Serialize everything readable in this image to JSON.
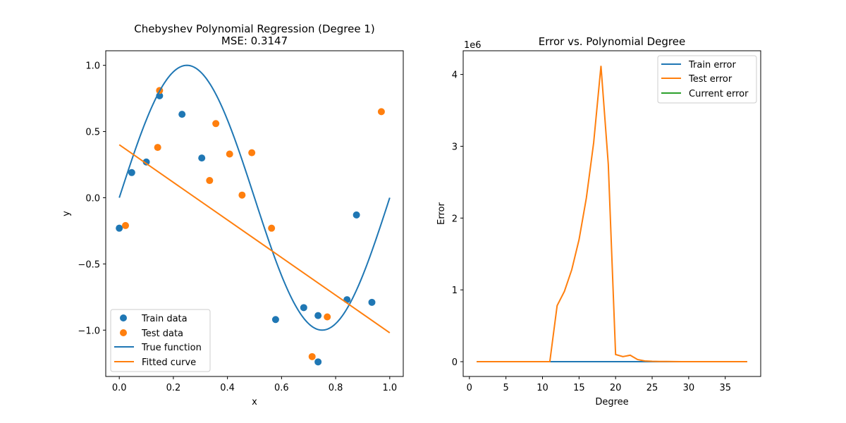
{
  "chart_data": [
    {
      "type": "scatter",
      "title": "Chebyshev Polynomial Regression (Degree 1)",
      "subtitle": "MSE: 0.3147",
      "xlabel": "x",
      "ylabel": "y",
      "xlim": [
        -0.05,
        1.05
      ],
      "ylim": [
        -1.35,
        1.11
      ],
      "xticks": [
        0.0,
        0.2,
        0.4,
        0.6,
        0.8,
        1.0
      ],
      "xtick_labels": [
        "0.0",
        "0.2",
        "0.4",
        "0.6",
        "0.8",
        "1.0"
      ],
      "yticks": [
        -1.0,
        -0.5,
        0.0,
        0.5,
        1.0
      ],
      "ytick_labels": [
        "−1.0",
        "−0.5",
        "0.0",
        "0.5",
        "1.0"
      ],
      "legend_position": "lower-left",
      "series": [
        {
          "name": "Train data",
          "kind": "scatter",
          "color": "#1f77b4",
          "points": [
            [
              0.0,
              -0.23
            ],
            [
              0.046,
              0.19
            ],
            [
              0.1,
              0.27
            ],
            [
              0.149,
              0.77
            ],
            [
              0.232,
              0.63
            ],
            [
              0.305,
              0.3
            ],
            [
              0.578,
              -0.92
            ],
            [
              0.682,
              -0.83
            ],
            [
              0.735,
              -0.89
            ],
            [
              0.735,
              -1.24
            ],
            [
              0.842,
              -0.77
            ],
            [
              0.877,
              -0.13
            ],
            [
              0.934,
              -0.79
            ]
          ]
        },
        {
          "name": "Test data",
          "kind": "scatter",
          "color": "#ff7f0e",
          "points": [
            [
              0.023,
              -0.21
            ],
            [
              0.142,
              0.38
            ],
            [
              0.149,
              0.81
            ],
            [
              0.334,
              0.13
            ],
            [
              0.357,
              0.56
            ],
            [
              0.408,
              0.33
            ],
            [
              0.454,
              0.02
            ],
            [
              0.49,
              0.34
            ],
            [
              0.563,
              -0.23
            ],
            [
              0.713,
              -1.2
            ],
            [
              0.769,
              -0.9
            ],
            [
              0.969,
              0.65
            ]
          ]
        },
        {
          "name": "True function",
          "kind": "function",
          "color": "#1f77b4",
          "function": "sin(2*pi*x)",
          "x_range": [
            0.0,
            1.0
          ]
        },
        {
          "name": "Fitted curve",
          "kind": "line",
          "color": "#ff7f0e",
          "points": [
            [
              0.0,
              0.4
            ],
            [
              1.0,
              -1.02
            ]
          ]
        }
      ]
    },
    {
      "type": "line",
      "title": "Error vs. Polynomial Degree",
      "xlabel": "Degree",
      "ylabel": "Error",
      "y_multiplier_label": "1e6",
      "xlim": [
        -0.85,
        39.85
      ],
      "ylim": [
        -0.206,
        4.33
      ],
      "xticks": [
        0,
        5,
        10,
        15,
        20,
        25,
        30,
        35
      ],
      "xtick_labels": [
        "0",
        "5",
        "10",
        "15",
        "20",
        "25",
        "30",
        "35"
      ],
      "yticks": [
        0,
        1,
        2,
        3,
        4
      ],
      "ytick_labels": [
        "0",
        "1",
        "2",
        "3",
        "4"
      ],
      "legend_position": "upper-right",
      "series": [
        {
          "name": "Train error",
          "color": "#1f77b4",
          "x": [
            1,
            2,
            3,
            4,
            5,
            6,
            7,
            8,
            9,
            10,
            11,
            12,
            13,
            14,
            15,
            16,
            17,
            18,
            19,
            20,
            21,
            22,
            23,
            24,
            25,
            26,
            27,
            28,
            29,
            30,
            31,
            32,
            33,
            34,
            35,
            36,
            37,
            38
          ],
          "y": [
            0,
            0,
            0,
            0,
            0,
            0,
            0,
            0,
            0,
            0,
            0,
            0,
            0,
            0,
            0,
            0,
            0,
            0,
            0,
            0,
            0,
            0,
            0,
            0,
            0,
            0,
            0,
            0,
            0,
            0,
            0,
            0,
            0,
            0,
            0,
            0,
            0,
            0
          ]
        },
        {
          "name": "Test error",
          "color": "#ff7f0e",
          "x": [
            1,
            2,
            3,
            4,
            5,
            6,
            7,
            8,
            9,
            10,
            11,
            12,
            13,
            14,
            15,
            16,
            17,
            18,
            19,
            20,
            21,
            22,
            23,
            24,
            25,
            26,
            27,
            28,
            29,
            30,
            31,
            32,
            33,
            34,
            35,
            36,
            37,
            38
          ],
          "y": [
            0,
            0,
            0,
            0,
            0,
            0,
            0,
            0,
            0,
            0,
            0,
            0.78,
            0.98,
            1.28,
            1.7,
            2.28,
            3.05,
            4.12,
            2.75,
            0.1,
            0.07,
            0.09,
            0.03,
            0.01,
            0.005,
            0.003,
            0.002,
            0.001,
            0,
            0,
            0,
            0,
            0,
            0,
            0,
            0,
            0,
            0
          ]
        },
        {
          "name": "Current error",
          "color": "#2ca02c",
          "x": [],
          "y": []
        }
      ]
    }
  ]
}
